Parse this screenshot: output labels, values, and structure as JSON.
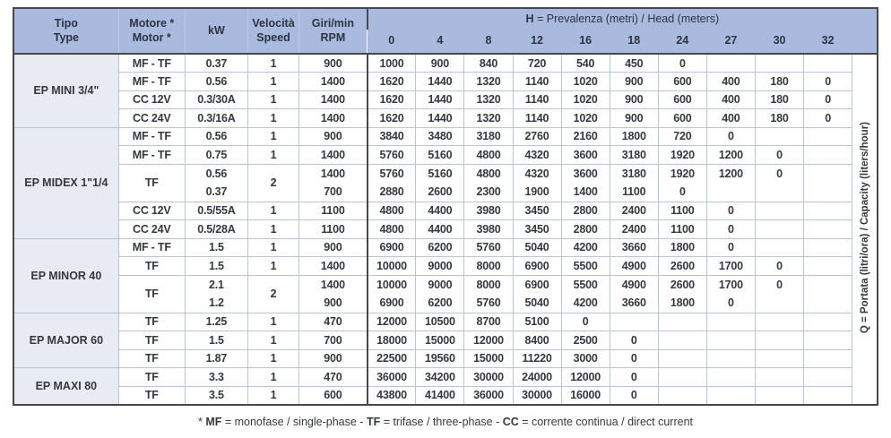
{
  "colors": {
    "header_bg": "#aab9de",
    "type_column_bg": "#e8eaf4",
    "grid_line": "#b7c4e0",
    "dark_border": "#47484a",
    "text": "#35393f"
  },
  "header": {
    "tipo": "Tipo\nType",
    "motore": "Motore *\nMotor *",
    "kw": "kW",
    "velocita": "Velocità\nSpeed",
    "rpm": "Giri/min\nRPM",
    "head_bold": "H",
    "head_rest": " = Prevalenza (metri) / Head (meters)",
    "head_values": [
      "0",
      "4",
      "8",
      "12",
      "16",
      "18",
      "24",
      "27",
      "30",
      "32"
    ]
  },
  "side_label": {
    "bold": "Q",
    "rest": " = Portata (litri/ora) / Capacity (liters/hour)"
  },
  "sections": [
    {
      "label": "EP MINI 3/4\"",
      "rows": [
        {
          "motor": "MF - TF",
          "kw": [
            "0.37"
          ],
          "speed": "1",
          "rpm": [
            "900"
          ],
          "v": [
            [
              "1000"
            ],
            [
              "900"
            ],
            [
              "840"
            ],
            [
              "720"
            ],
            [
              "540"
            ],
            [
              "450"
            ],
            [
              "0"
            ],
            [
              ""
            ],
            [
              ""
            ],
            [
              ""
            ]
          ]
        },
        {
          "motor": "MF - TF",
          "kw": [
            "0.56"
          ],
          "speed": "1",
          "rpm": [
            "1400"
          ],
          "v": [
            [
              "1620"
            ],
            [
              "1440"
            ],
            [
              "1320"
            ],
            [
              "1140"
            ],
            [
              "1020"
            ],
            [
              "900"
            ],
            [
              "600"
            ],
            [
              "400"
            ],
            [
              "180"
            ],
            [
              "0"
            ]
          ]
        },
        {
          "motor": "CC 12V",
          "kw": [
            "0.3/30A"
          ],
          "speed": "1",
          "rpm": [
            "1400"
          ],
          "v": [
            [
              "1620"
            ],
            [
              "1440"
            ],
            [
              "1320"
            ],
            [
              "1140"
            ],
            [
              "1020"
            ],
            [
              "900"
            ],
            [
              "600"
            ],
            [
              "400"
            ],
            [
              "180"
            ],
            [
              "0"
            ]
          ]
        },
        {
          "motor": "CC 24V",
          "kw": [
            "0.3/16A"
          ],
          "speed": "1",
          "rpm": [
            "1400"
          ],
          "v": [
            [
              "1620"
            ],
            [
              "1440"
            ],
            [
              "1320"
            ],
            [
              "1140"
            ],
            [
              "1020"
            ],
            [
              "900"
            ],
            [
              "600"
            ],
            [
              "400"
            ],
            [
              "180"
            ],
            [
              "0"
            ]
          ]
        }
      ]
    },
    {
      "label": "EP MIDEX 1\"1/4",
      "rows": [
        {
          "motor": "MF - TF",
          "kw": [
            "0.56"
          ],
          "speed": "1",
          "rpm": [
            "900"
          ],
          "v": [
            [
              "3840"
            ],
            [
              "3480"
            ],
            [
              "3180"
            ],
            [
              "2760"
            ],
            [
              "2160"
            ],
            [
              "1800"
            ],
            [
              "720"
            ],
            [
              "0"
            ],
            [
              ""
            ],
            [
              ""
            ]
          ]
        },
        {
          "motor": "MF - TF",
          "kw": [
            "0.75"
          ],
          "speed": "1",
          "rpm": [
            "1400"
          ],
          "v": [
            [
              "5760"
            ],
            [
              "5160"
            ],
            [
              "4800"
            ],
            [
              "4320"
            ],
            [
              "3600"
            ],
            [
              "3180"
            ],
            [
              "1920"
            ],
            [
              "1200"
            ],
            [
              "0"
            ],
            [
              ""
            ]
          ]
        },
        {
          "motor": "TF",
          "kw": [
            "0.56",
            "0.37"
          ],
          "speed": "2",
          "rpm": [
            "1400",
            "700"
          ],
          "v": [
            [
              "5760",
              "2880"
            ],
            [
              "5160",
              "2600"
            ],
            [
              "4800",
              "2300"
            ],
            [
              "4320",
              "1900"
            ],
            [
              "3600",
              "1400"
            ],
            [
              "3180",
              "1100"
            ],
            [
              "1920",
              "0"
            ],
            [
              "1200",
              ""
            ],
            [
              "0",
              ""
            ],
            [
              "",
              ""
            ]
          ]
        },
        {
          "motor": "CC 12V",
          "kw": [
            "0.5/55A"
          ],
          "speed": "1",
          "rpm": [
            "1100"
          ],
          "v": [
            [
              "4800"
            ],
            [
              "4400"
            ],
            [
              "3980"
            ],
            [
              "3450"
            ],
            [
              "2800"
            ],
            [
              "2400"
            ],
            [
              "1100"
            ],
            [
              "0"
            ],
            [
              ""
            ],
            [
              ""
            ]
          ]
        },
        {
          "motor": "CC 24V",
          "kw": [
            "0.5/28A"
          ],
          "speed": "1",
          "rpm": [
            "1100"
          ],
          "v": [
            [
              "4800"
            ],
            [
              "4400"
            ],
            [
              "3980"
            ],
            [
              "3450"
            ],
            [
              "2800"
            ],
            [
              "2400"
            ],
            [
              "1100"
            ],
            [
              "0"
            ],
            [
              ""
            ],
            [
              ""
            ]
          ]
        }
      ]
    },
    {
      "label": "EP MINOR 40",
      "rows": [
        {
          "motor": "MF - TF",
          "kw": [
            "1.5"
          ],
          "speed": "1",
          "rpm": [
            "900"
          ],
          "v": [
            [
              "6900"
            ],
            [
              "6200"
            ],
            [
              "5760"
            ],
            [
              "5040"
            ],
            [
              "4200"
            ],
            [
              "3660"
            ],
            [
              "1800"
            ],
            [
              "0"
            ],
            [
              ""
            ],
            [
              ""
            ]
          ]
        },
        {
          "motor": "TF",
          "kw": [
            "1.5"
          ],
          "speed": "1",
          "rpm": [
            "1400"
          ],
          "v": [
            [
              "10000"
            ],
            [
              "9000"
            ],
            [
              "8000"
            ],
            [
              "6900"
            ],
            [
              "5500"
            ],
            [
              "4900"
            ],
            [
              "2600"
            ],
            [
              "1700"
            ],
            [
              "0"
            ],
            [
              ""
            ]
          ]
        },
        {
          "motor": "TF",
          "kw": [
            "2.1",
            "1.2"
          ],
          "speed": "2",
          "rpm": [
            "1400",
            "900"
          ],
          "v": [
            [
              "10000",
              "6900"
            ],
            [
              "9000",
              "6200"
            ],
            [
              "8000",
              "5760"
            ],
            [
              "6900",
              "5040"
            ],
            [
              "5500",
              "4200"
            ],
            [
              "4900",
              "3660"
            ],
            [
              "2600",
              "1800"
            ],
            [
              "1700",
              "0"
            ],
            [
              "0",
              ""
            ],
            [
              "",
              ""
            ]
          ]
        }
      ]
    },
    {
      "label": "EP MAJOR 60",
      "rows": [
        {
          "motor": "TF",
          "kw": [
            "1.25"
          ],
          "speed": "1",
          "rpm": [
            "470"
          ],
          "v": [
            [
              "12000"
            ],
            [
              "10500"
            ],
            [
              "8700"
            ],
            [
              "5100"
            ],
            [
              "0"
            ],
            [
              ""
            ],
            [
              ""
            ],
            [
              ""
            ],
            [
              ""
            ],
            [
              ""
            ]
          ]
        },
        {
          "motor": "TF",
          "kw": [
            "1.5"
          ],
          "speed": "1",
          "rpm": [
            "700"
          ],
          "v": [
            [
              "18000"
            ],
            [
              "15000"
            ],
            [
              "12000"
            ],
            [
              "8400"
            ],
            [
              "2500"
            ],
            [
              "0"
            ],
            [
              ""
            ],
            [
              ""
            ],
            [
              ""
            ],
            [
              ""
            ]
          ]
        },
        {
          "motor": "TF",
          "kw": [
            "1.87"
          ],
          "speed": "1",
          "rpm": [
            "900"
          ],
          "v": [
            [
              "22500"
            ],
            [
              "19560"
            ],
            [
              "15000"
            ],
            [
              "11220"
            ],
            [
              "3000"
            ],
            [
              "0"
            ],
            [
              ""
            ],
            [
              ""
            ],
            [
              ""
            ],
            [
              ""
            ]
          ]
        }
      ]
    },
    {
      "label": "EP MAXI 80",
      "rows": [
        {
          "motor": "TF",
          "kw": [
            "3.3"
          ],
          "speed": "1",
          "rpm": [
            "470"
          ],
          "v": [
            [
              "36000"
            ],
            [
              "34200"
            ],
            [
              "30000"
            ],
            [
              "24000"
            ],
            [
              "12000"
            ],
            [
              "0"
            ],
            [
              ""
            ],
            [
              ""
            ],
            [
              ""
            ],
            [
              ""
            ]
          ]
        },
        {
          "motor": "TF",
          "kw": [
            "3.5"
          ],
          "speed": "1",
          "rpm": [
            "600"
          ],
          "v": [
            [
              "43800"
            ],
            [
              "41400"
            ],
            [
              "36000"
            ],
            [
              "30000"
            ],
            [
              "16000"
            ],
            [
              "0"
            ],
            [
              ""
            ],
            [
              ""
            ],
            [
              ""
            ],
            [
              ""
            ]
          ]
        }
      ]
    }
  ],
  "footnote": {
    "parts": [
      {
        "t": "* "
      },
      {
        "t": "MF",
        "b": true
      },
      {
        "t": " = monofase / single-phase - "
      },
      {
        "t": "TF",
        "b": true
      },
      {
        "t": " = trifase / three-phase - "
      },
      {
        "t": "CC",
        "b": true
      },
      {
        "t": " = corrente continua / direct current"
      }
    ]
  }
}
